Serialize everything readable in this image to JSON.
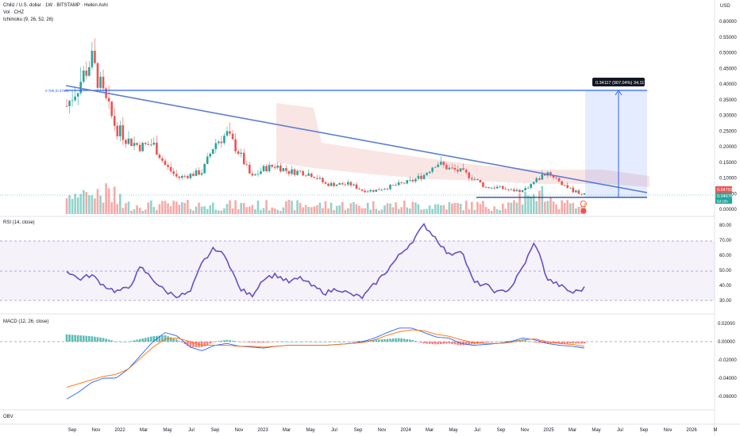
{
  "header": {
    "title": "Chiliz / U.S. dollar · 1W · BITSTAMP · Heikin Ashi",
    "vol": "Vol · CHZ",
    "ichimoku": "Ichimoku (9, 26, 52, 26)",
    "currency": "USD"
  },
  "colors": {
    "up": "#26a69a",
    "down": "#ef5350",
    "trend": "#5b7fcf",
    "rsi": "#6a4fc2",
    "macd": "#2962ff",
    "signal": "#ff6d00",
    "cloud": "#f5c6c6",
    "measure": "#2962ff"
  },
  "axis": {
    "price_ticks": [
      "0.60000",
      "0.55000",
      "0.50000",
      "0.45000",
      "0.40000",
      "0.35000",
      "0.30000",
      "0.25000",
      "0.20000",
      "0.15000",
      "0.10000",
      "0.05000",
      "0.00000"
    ],
    "rsi_ticks": [
      "80.00",
      "70.00",
      "60.00",
      "50.00",
      "40.00",
      "30.00"
    ],
    "macd_ticks": [
      "0.02000",
      "0.00000",
      "-0.02000",
      "-0.04000",
      "-0.06000"
    ],
    "time_ticks": [
      "Sep",
      "Nov",
      "2022",
      "Mar",
      "May",
      "Jul",
      "Sep",
      "Nov",
      "2023",
      "Mar",
      "May",
      "Jul",
      "Sep",
      "Nov",
      "2024",
      "Mar",
      "May",
      "Jul",
      "Sep",
      "Nov",
      "2025",
      "Mar",
      "May",
      "Jul",
      "Sep",
      "Nov",
      "2026",
      "M"
    ]
  },
  "labels": {
    "fib": "0.786 (0.3790)",
    "measure": "0.34117 (907.04%) 34,117",
    "price_last": "0.04791",
    "price_close": "0.04676",
    "countdown": "5d 15h",
    "rsi": "RSI (14, close)",
    "macd": "MACD (12, 26, close)",
    "obv": "OBV"
  },
  "chart_data": [
    {
      "type": "line",
      "title": "Chiliz / U.S. dollar · 1W · BITSTAMP · Heikin Ashi",
      "xlabel": "",
      "ylabel": "USD",
      "x": [
        "2021-09",
        "2021-10",
        "2021-11",
        "2021-12",
        "2022-01",
        "2022-02",
        "2022-03",
        "2022-04",
        "2022-05",
        "2022-06",
        "2022-07",
        "2022-08",
        "2022-09",
        "2022-10",
        "2022-11",
        "2022-12",
        "2023-01",
        "2023-02",
        "2023-03",
        "2023-04",
        "2023-05",
        "2023-06",
        "2023-07",
        "2023-08",
        "2023-09",
        "2023-10",
        "2023-11",
        "2023-12",
        "2024-01",
        "2024-02",
        "2024-03",
        "2024-04",
        "2024-05",
        "2024-06",
        "2024-07",
        "2024-08",
        "2024-09",
        "2024-10",
        "2024-11",
        "2024-12",
        "2025-01",
        "2025-02",
        "2025-03"
      ],
      "series": [
        {
          "values": [
            0.33,
            0.4,
            0.48,
            0.36,
            0.26,
            0.22,
            0.2,
            0.21,
            0.14,
            0.1,
            0.11,
            0.12,
            0.21,
            0.24,
            0.18,
            0.1,
            0.13,
            0.14,
            0.12,
            0.12,
            0.11,
            0.08,
            0.08,
            0.08,
            0.06,
            0.06,
            0.07,
            0.08,
            0.09,
            0.11,
            0.15,
            0.13,
            0.12,
            0.1,
            0.07,
            0.07,
            0.06,
            0.06,
            0.09,
            0.12,
            0.09,
            0.06,
            0.047
          ]
        }
      ],
      "ylim": [
        0,
        0.62
      ],
      "annotations": {
        "horizontal_line": 0.379,
        "measure_pct": "907.04%"
      }
    },
    {
      "type": "line",
      "title": "RSI (14, close)",
      "series": [
        {
          "values": [
            50,
            44,
            47,
            40,
            36,
            38,
            52,
            44,
            36,
            33,
            35,
            55,
            65,
            58,
            38,
            33,
            45,
            47,
            42,
            45,
            39,
            35,
            38,
            34,
            32,
            41,
            50,
            60,
            69,
            80,
            71,
            60,
            64,
            42,
            40,
            35,
            38,
            52,
            69,
            44,
            40,
            35,
            38
          ]
        }
      ],
      "ylim": [
        27,
        82
      ]
    },
    {
      "type": "line",
      "title": "MACD (12, 26, close)",
      "series": [
        {
          "values": [
            -0.063,
            -0.055,
            -0.045,
            -0.04,
            -0.04,
            -0.03,
            -0.015,
            0.0,
            0.01,
            0.006,
            -0.006,
            -0.01,
            -0.004,
            -0.002,
            -0.005,
            -0.006,
            -0.007,
            -0.005,
            -0.004,
            -0.004,
            -0.004,
            -0.004,
            -0.003,
            -0.002,
            0.0,
            0.004,
            0.01,
            0.015,
            0.015,
            0.01,
            0.005,
            0.004,
            -0.002,
            -0.004,
            -0.003,
            -0.002,
            0.0,
            0.004,
            0.002,
            -0.002,
            -0.004,
            -0.005,
            -0.007
          ]
        },
        {
          "values": [
            -0.05,
            -0.046,
            -0.042,
            -0.038,
            -0.036,
            -0.03,
            -0.018,
            -0.006,
            0.003,
            0.004,
            0.0,
            -0.004,
            -0.004,
            -0.004,
            -0.005,
            -0.005,
            -0.006,
            -0.005,
            -0.004,
            -0.004,
            -0.004,
            -0.004,
            -0.003,
            -0.002,
            -0.001,
            0.002,
            0.007,
            0.011,
            0.013,
            0.012,
            0.008,
            0.006,
            0.002,
            -0.001,
            -0.002,
            -0.002,
            -0.001,
            0.002,
            0.003,
            0.0,
            -0.002,
            -0.003,
            -0.005
          ]
        },
        {
          "values": [
            0.008,
            0.007,
            0.006,
            0.004,
            0.0,
            0.0,
            0.003,
            0.006,
            0.007,
            0.002,
            -0.006,
            -0.006,
            0.0,
            0.002,
            0.0,
            -0.001,
            -0.001,
            0.0,
            0.0,
            0.0,
            0.0,
            0.0,
            0.0,
            0.0,
            0.001,
            0.002,
            0.003,
            0.004,
            0.002,
            -0.002,
            -0.003,
            -0.002,
            -0.004,
            -0.003,
            -0.001,
            0.0,
            0.001,
            0.002,
            -0.001,
            -0.002,
            -0.002,
            -0.002,
            -0.002
          ]
        }
      ],
      "ylim": [
        -0.07,
        0.03
      ]
    }
  ]
}
